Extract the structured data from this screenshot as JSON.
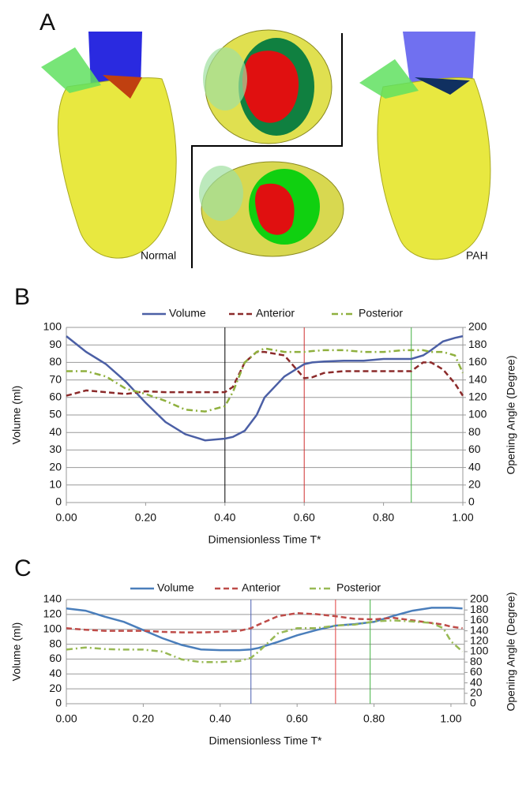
{
  "panel_a": {
    "label": "A",
    "normal_label": "Normal",
    "pah_label": "PAH"
  },
  "chart_data": [
    {
      "type": "line",
      "label": "B",
      "xlabel": "Dimensionless Time T*",
      "ylabel": "Volume (ml)",
      "y2label": "Opening Angle (Degree)",
      "x": [
        0,
        0.05,
        0.1,
        0.15,
        0.2,
        0.25,
        0.3,
        0.35,
        0.4,
        0.42,
        0.45,
        0.48,
        0.5,
        0.55,
        0.6,
        0.62,
        0.65,
        0.7,
        0.75,
        0.8,
        0.85,
        0.87,
        0.9,
        0.92,
        0.95,
        0.98,
        1.0
      ],
      "series": [
        {
          "name": "Volume",
          "color": "#4b5fa5",
          "dash": "solid",
          "axis": "y",
          "values": [
            95,
            86,
            79,
            69,
            57,
            46,
            39,
            35.5,
            36.5,
            37.5,
            41,
            50,
            60,
            72,
            79,
            80,
            80.5,
            81,
            81,
            82,
            82,
            82,
            84,
            87,
            92,
            94,
            95
          ]
        },
        {
          "name": "Anterior",
          "color": "#8b2a2a",
          "dash": "dash",
          "axis": "y2",
          "values": [
            122,
            128,
            126,
            124,
            127,
            126,
            126,
            126,
            126,
            132,
            160,
            172,
            172,
            168,
            142,
            143,
            148,
            150,
            150,
            150,
            150,
            150,
            160,
            160,
            152,
            136,
            122
          ]
        },
        {
          "name": "Posterior",
          "color": "#8fb03e",
          "dash": "dashdot",
          "axis": "y2",
          "values": [
            150,
            150,
            144,
            130,
            124,
            116,
            106,
            104,
            110,
            126,
            160,
            172,
            176,
            172,
            172,
            173,
            174,
            174,
            172,
            172,
            174,
            174,
            174,
            172,
            172,
            168,
            148
          ]
        }
      ],
      "xlim": [
        0,
        1
      ],
      "xticks": [
        {
          "value": 0,
          "label": "0.00"
        },
        {
          "value": 0.2,
          "label": "0.20"
        },
        {
          "value": 0.4,
          "label": "0.40"
        },
        {
          "value": 0.6,
          "label": "0.60"
        },
        {
          "value": 0.8,
          "label": "0.80"
        },
        {
          "value": 1,
          "label": "1.00"
        }
      ],
      "ylim": [
        0,
        100
      ],
      "yticks": [
        0,
        10,
        20,
        30,
        40,
        50,
        60,
        70,
        80,
        90,
        100
      ],
      "y2lim": [
        0,
        200
      ],
      "y2ticks": [
        0,
        20,
        40,
        60,
        80,
        100,
        120,
        140,
        160,
        180,
        200
      ],
      "vlines": [
        {
          "x": 0.4,
          "color": "#000000"
        },
        {
          "x": 0.6,
          "color": "#d03030"
        },
        {
          "x": 0.87,
          "color": "#40b040"
        }
      ],
      "grid": true
    },
    {
      "type": "line",
      "label": "C",
      "xlabel": "Dimensionless Time T*",
      "ylabel": "Volume (ml)",
      "y2label": "Opening Angle (Degree)",
      "x": [
        0,
        0.05,
        0.1,
        0.15,
        0.2,
        0.25,
        0.3,
        0.35,
        0.4,
        0.45,
        0.48,
        0.5,
        0.55,
        0.6,
        0.65,
        0.7,
        0.75,
        0.8,
        0.85,
        0.9,
        0.95,
        0.98,
        1.0,
        1.03
      ],
      "series": [
        {
          "name": "Volume",
          "color": "#4a7ebb",
          "dash": "solid",
          "axis": "y",
          "values": [
            128,
            125,
            117,
            110,
            99,
            88,
            79,
            73,
            72,
            72,
            73,
            75,
            83,
            92,
            99,
            105,
            107,
            110,
            118,
            125,
            129,
            129,
            129,
            128
          ]
        },
        {
          "name": "Anterior",
          "color": "#be4b48",
          "dash": "dash",
          "axis": "y2",
          "values": [
            145,
            142,
            140,
            140,
            140,
            138,
            137,
            137,
            138,
            140,
            145,
            152,
            168,
            174,
            172,
            168,
            163,
            162,
            165,
            160,
            155,
            152,
            148,
            145
          ]
        },
        {
          "name": "Posterior",
          "color": "#98b954",
          "dash": "dashdot",
          "axis": "y2",
          "values": [
            104,
            108,
            105,
            104,
            104,
            100,
            85,
            80,
            80,
            82,
            88,
            100,
            135,
            145,
            145,
            150,
            152,
            158,
            160,
            158,
            155,
            145,
            120,
            100
          ]
        }
      ],
      "xlim": [
        0,
        1.035
      ],
      "xticks": [
        {
          "value": 0,
          "label": "0.00"
        },
        {
          "value": 0.2,
          "label": "0.20"
        },
        {
          "value": 0.4,
          "label": "0.40"
        },
        {
          "value": 0.6,
          "label": "0.60"
        },
        {
          "value": 0.8,
          "label": "0.80"
        },
        {
          "value": 1,
          "label": "1.00"
        }
      ],
      "ylim": [
        0,
        140
      ],
      "yticks": [
        0,
        20,
        40,
        60,
        80,
        100,
        120,
        140
      ],
      "y2lim": [
        0,
        200
      ],
      "y2ticks": [
        0,
        20,
        40,
        60,
        80,
        100,
        120,
        140,
        160,
        180,
        200
      ],
      "vlines": [
        {
          "x": 0.48,
          "color": "#4a5fb0"
        },
        {
          "x": 0.7,
          "color": "#e04040"
        },
        {
          "x": 0.79,
          "color": "#40b040"
        }
      ],
      "grid": true
    }
  ]
}
